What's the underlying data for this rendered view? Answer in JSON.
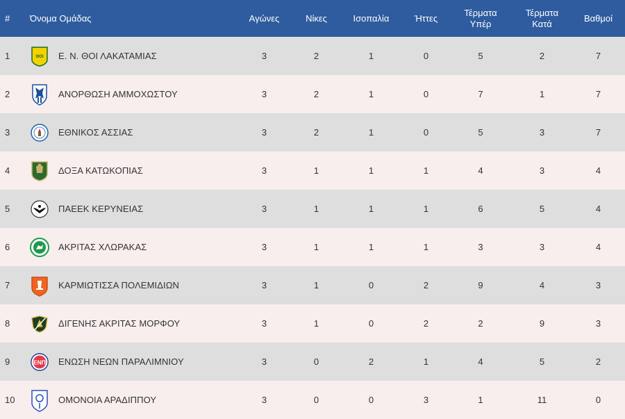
{
  "header": {
    "pos": "#",
    "team": "Όνομα Ομάδας",
    "played": "Αγώνες",
    "wins": "Νίκες",
    "draws": "Ισοπαλία",
    "losses": "Ήττες",
    "goals_for": [
      "Τέρματα",
      "Υπέρ"
    ],
    "goals_against": [
      "Τέρματα",
      "Κατά"
    ],
    "points": "Βαθμοί"
  },
  "colors": {
    "header_bg": "#2e5c9e",
    "row_odd": "#dedede",
    "row_even": "#f8eeee"
  },
  "rows": [
    {
      "pos": "1",
      "team": "Ε. Ν. ΘΟΙ ΛΑΚΑΤΑΜΙΑΣ",
      "logo": "thoi-lakatamias-logo",
      "played": "3",
      "wins": "2",
      "draws": "1",
      "losses": "0",
      "gf": "5",
      "ga": "2",
      "pts": "7"
    },
    {
      "pos": "2",
      "team": "ΑΝΟΡΘΩΣΗ ΑΜΜΟΧΩΣΤΟΥ",
      "logo": "anorthosis-logo",
      "played": "3",
      "wins": "2",
      "draws": "1",
      "losses": "0",
      "gf": "7",
      "ga": "1",
      "pts": "7"
    },
    {
      "pos": "3",
      "team": "ΕΘΝΙΚΟΣ ΑΣΣΙΑΣ",
      "logo": "ethnikos-assias-logo",
      "played": "3",
      "wins": "2",
      "draws": "1",
      "losses": "0",
      "gf": "5",
      "ga": "3",
      "pts": "7"
    },
    {
      "pos": "4",
      "team": "ΔΟΞΑ ΚΑΤΩΚΟΠΙΑΣ",
      "logo": "doxa-katokopias-logo",
      "played": "3",
      "wins": "1",
      "draws": "1",
      "losses": "1",
      "gf": "4",
      "ga": "3",
      "pts": "4"
    },
    {
      "pos": "5",
      "team": "ΠΑΕΕΚ ΚΕΡΥΝΕΙΑΣ",
      "logo": "paeek-logo",
      "played": "3",
      "wins": "1",
      "draws": "1",
      "losses": "1",
      "gf": "6",
      "ga": "5",
      "pts": "4"
    },
    {
      "pos": "6",
      "team": "ΑΚΡΙΤΑΣ ΧΛΩΡΑΚΑΣ",
      "logo": "akritas-chlorakas-logo",
      "played": "3",
      "wins": "1",
      "draws": "1",
      "losses": "1",
      "gf": "3",
      "ga": "3",
      "pts": "4"
    },
    {
      "pos": "7",
      "team": "ΚΑΡΜΙΩΤΙΣΣΑ ΠΟΛΕΜΙΔΙΩΝ",
      "logo": "karmiotissa-logo",
      "played": "3",
      "wins": "1",
      "draws": "0",
      "losses": "2",
      "gf": "9",
      "ga": "4",
      "pts": "3"
    },
    {
      "pos": "8",
      "team": "ΔΙΓΕΝΗΣ ΑΚΡΙΤΑΣ ΜΟΡΦΟΥ",
      "logo": "digenis-morfou-logo",
      "played": "3",
      "wins": "1",
      "draws": "0",
      "losses": "2",
      "gf": "2",
      "ga": "9",
      "pts": "3"
    },
    {
      "pos": "9",
      "team": "ΕΝΩΣΗ ΝΕΩΝ ΠΑΡΑΛΙΜΝΙΟΥ",
      "logo": "enp-logo",
      "played": "3",
      "wins": "0",
      "draws": "2",
      "losses": "1",
      "gf": "4",
      "ga": "5",
      "pts": "2"
    },
    {
      "pos": "10",
      "team": "ΟΜΟΝΟΙΑ ΑΡΑΔΙΠΠΟΥ",
      "logo": "omonoia-aradippou-logo",
      "played": "3",
      "wins": "0",
      "draws": "0",
      "losses": "3",
      "gf": "1",
      "ga": "11",
      "pts": "0"
    }
  ]
}
